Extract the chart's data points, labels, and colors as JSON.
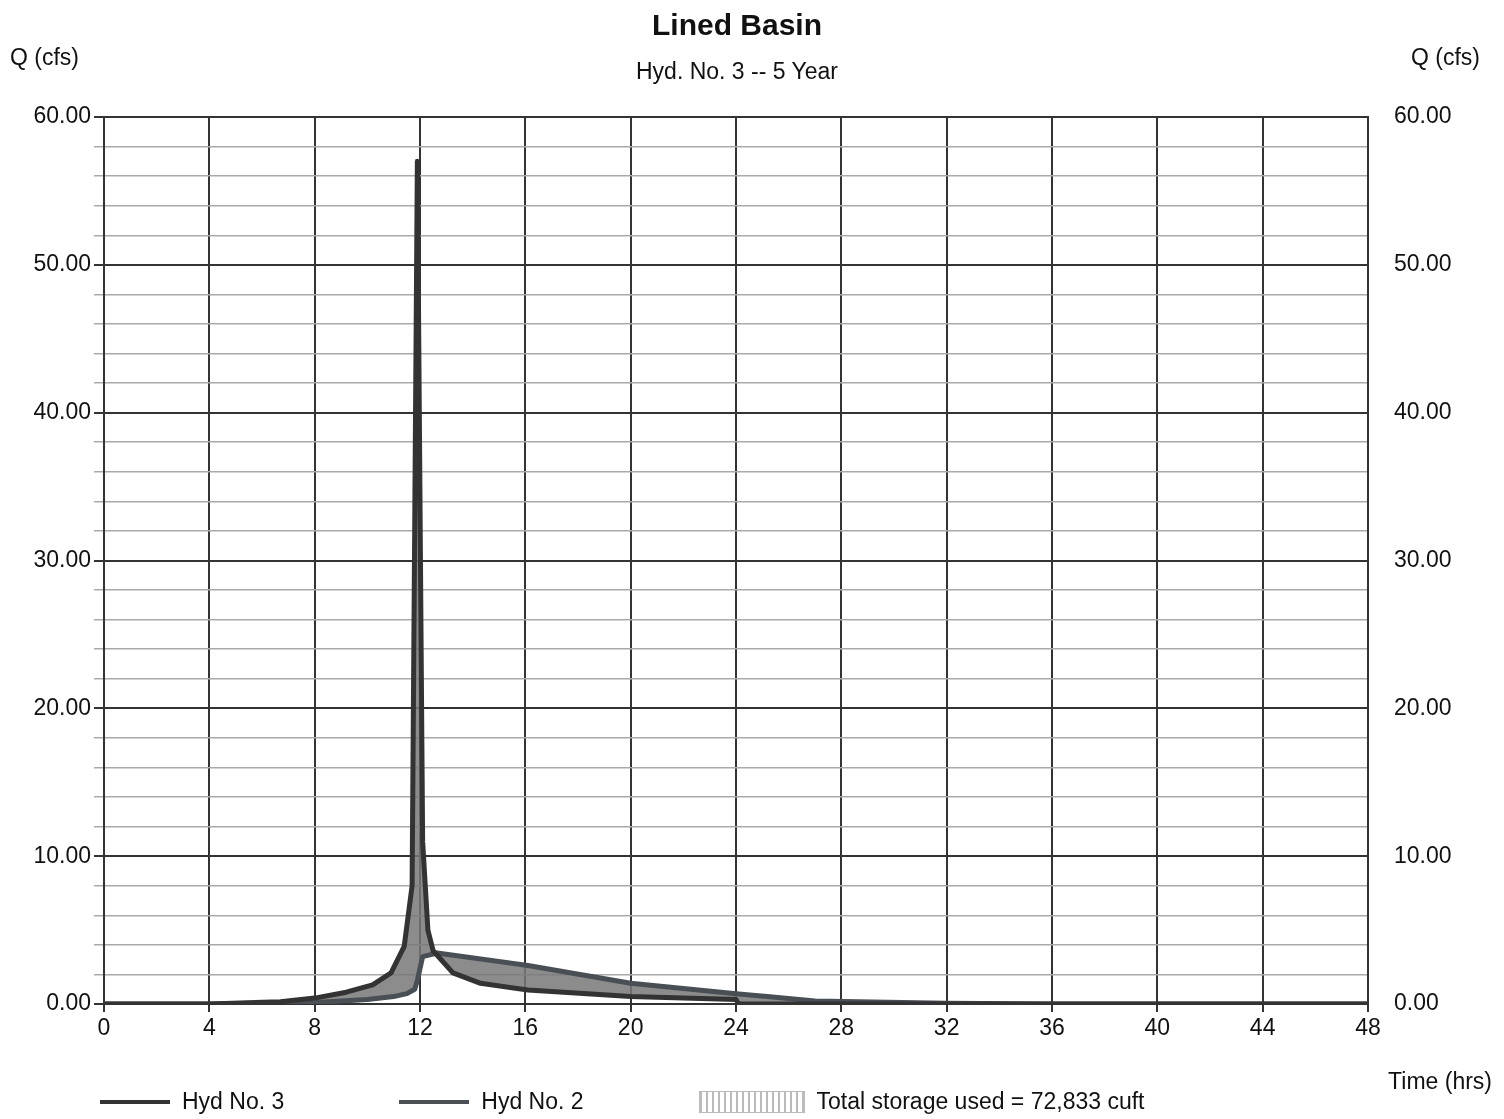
{
  "chart_data": {
    "type": "line",
    "title": "Lined Basin",
    "subtitle": "Hyd. No. 3 -- 5 Year",
    "xlabel": "Time (hrs)",
    "ylabel": "Q (cfs)",
    "y2label": "Q (cfs)",
    "series": [
      {
        "name": "Hyd No. 3",
        "color": "#333333",
        "x": [
          0,
          4,
          6.7,
          8,
          9.2,
          10.2,
          10.9,
          11.4,
          11.7,
          11.9,
          12.1,
          12.3,
          12.5,
          13.25,
          14.3,
          16.1,
          20,
          24,
          24.1,
          28,
          36,
          48
        ],
        "values": [
          0,
          0,
          0.15,
          0.4,
          0.8,
          1.3,
          2.1,
          3.9,
          8,
          57,
          11,
          5,
          3.6,
          2.1,
          1.4,
          0.95,
          0.5,
          0.3,
          0,
          0,
          0,
          0
        ]
      },
      {
        "name": "Hyd No. 2",
        "color": "#4a4f55",
        "x": [
          0,
          4,
          8,
          10,
          11,
          11.5,
          11.8,
          11.9,
          12.1,
          12.65,
          16.1,
          20,
          24,
          27,
          32,
          36,
          48
        ],
        "values": [
          0,
          0,
          0.1,
          0.3,
          0.5,
          0.7,
          1,
          1.6,
          3.2,
          3.45,
          2.6,
          1.4,
          0.7,
          0.2,
          0.05,
          0,
          0
        ]
      }
    ],
    "annotations": [
      "Total storage used = 72,833 cuft"
    ],
    "xlim": [
      0,
      48
    ],
    "xticks": [
      0,
      4,
      8,
      12,
      16,
      20,
      24,
      28,
      32,
      36,
      40,
      44,
      48
    ],
    "ylim": [
      0,
      60
    ],
    "yticks": [
      {
        "value": 0,
        "label": "0.00"
      },
      {
        "value": 2,
        "label": null
      },
      {
        "value": 4,
        "label": null
      },
      {
        "value": 6,
        "label": null
      },
      {
        "value": 8,
        "label": null
      },
      {
        "value": 10,
        "label": "10.00"
      },
      {
        "value": 12,
        "label": null
      },
      {
        "value": 14,
        "label": null
      },
      {
        "value": 16,
        "label": null
      },
      {
        "value": 18,
        "label": null
      },
      {
        "value": 20,
        "label": "20.00"
      },
      {
        "value": 22,
        "label": null
      },
      {
        "value": 24,
        "label": null
      },
      {
        "value": 26,
        "label": null
      },
      {
        "value": 28,
        "label": null
      },
      {
        "value": 30,
        "label": "30.00"
      },
      {
        "value": 32,
        "label": null
      },
      {
        "value": 34,
        "label": null
      },
      {
        "value": 36,
        "label": null
      },
      {
        "value": 38,
        "label": null
      },
      {
        "value": 40,
        "label": "40.00"
      },
      {
        "value": 42,
        "label": null
      },
      {
        "value": 44,
        "label": null
      },
      {
        "value": 46,
        "label": null
      },
      {
        "value": 48,
        "label": null
      },
      {
        "value": 50,
        "label": "50.00"
      },
      {
        "value": 52,
        "label": null
      },
      {
        "value": 54,
        "label": null
      },
      {
        "value": 56,
        "label": null
      },
      {
        "value": 58,
        "label": null
      },
      {
        "value": 60,
        "label": "60.00"
      }
    ],
    "y2lim": [
      0,
      60
    ],
    "y2ticks": [
      {
        "value": 0,
        "label": "0.00"
      },
      {
        "value": 10,
        "label": "10.00"
      },
      {
        "value": 20,
        "label": "20.00"
      },
      {
        "value": 30,
        "label": "30.00"
      },
      {
        "value": 40,
        "label": "40.00"
      },
      {
        "value": 50,
        "label": "50.00"
      },
      {
        "value": 60,
        "label": "60.00"
      }
    ],
    "grid": true,
    "legend": "bottom",
    "marker": "none",
    "line_style": "solid"
  }
}
